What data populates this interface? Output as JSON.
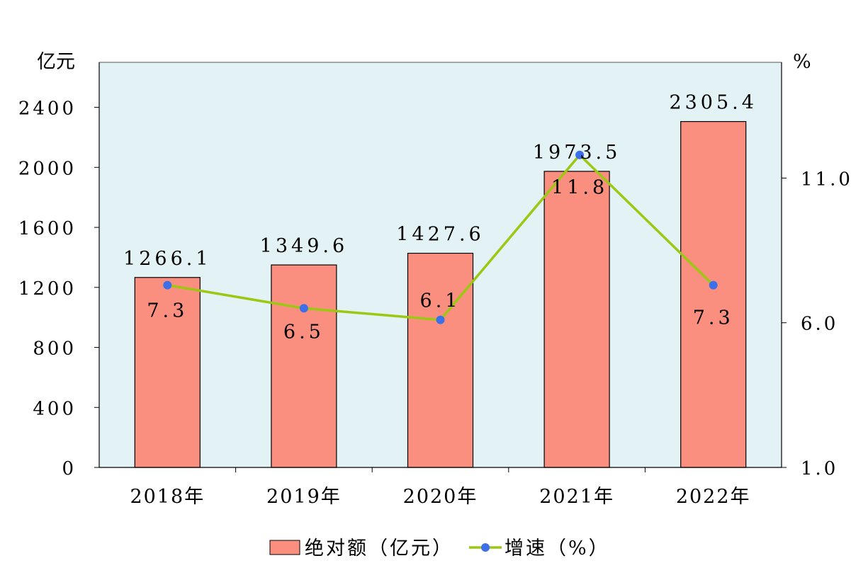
{
  "chart_data": {
    "type": "bar",
    "categories": [
      "2018年",
      "2019年",
      "2020年",
      "2021年",
      "2022年"
    ],
    "series": [
      {
        "name": "绝对额（亿元）",
        "type": "bar",
        "axis": "left",
        "color": "#fa8f80",
        "values": [
          1266.1,
          1349.6,
          1427.6,
          1973.5,
          2305.4
        ],
        "labels": [
          "1266.1",
          "1349.6",
          "1427.6",
          "1973.5",
          "2305.4"
        ]
      },
      {
        "name": "增速（%）",
        "type": "line",
        "axis": "right",
        "color": "#9cc814",
        "marker_color": "#3d6fe8",
        "values": [
          7.3,
          6.5,
          6.1,
          11.8,
          7.3
        ],
        "labels": [
          "7.3",
          "6.5",
          "6.1",
          "11.8",
          "7.3"
        ]
      }
    ],
    "y_left": {
      "unit": "亿元",
      "ylim": [
        0,
        2700
      ],
      "ticks": [
        "0",
        "400",
        "800",
        "1200",
        "1600",
        "2000",
        "2400"
      ]
    },
    "y_right": {
      "unit": "%",
      "ylim": [
        1.0,
        15.0
      ],
      "ticks": [
        "1.0",
        "6.0",
        "11.0"
      ]
    },
    "plot_background": "#e3f2f5",
    "grid": false,
    "legend_position": "bottom"
  }
}
